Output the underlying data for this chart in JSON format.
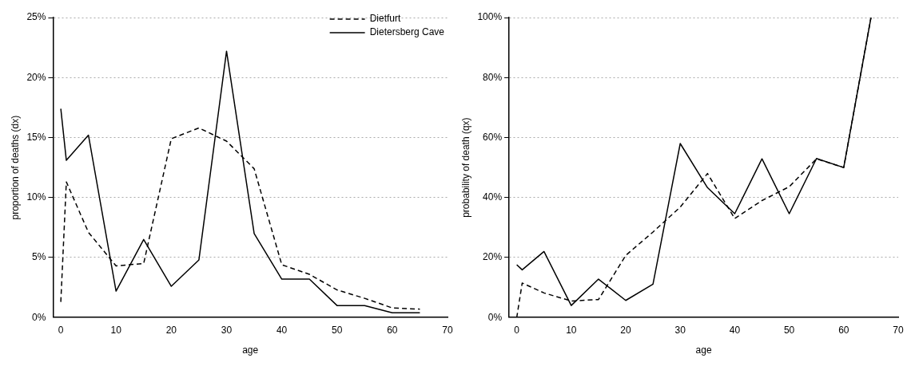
{
  "chart_data": [
    {
      "type": "line",
      "xlabel": "age",
      "ylabel": "proportion of deaths (dx)",
      "x": [
        0,
        1,
        5,
        10,
        15,
        20,
        25,
        30,
        35,
        40,
        45,
        50,
        55,
        60,
        65
      ],
      "xlim": [
        -1.4,
        70
      ],
      "xticks": [
        0,
        10,
        20,
        30,
        40,
        50,
        60,
        70
      ],
      "ylim": [
        0,
        25
      ],
      "yticks": [
        {
          "value": 0,
          "label": "0%"
        },
        {
          "value": 5,
          "label": "5%"
        },
        {
          "value": 10,
          "label": "10%"
        },
        {
          "value": 15,
          "label": "15%"
        },
        {
          "value": 20,
          "label": "20%"
        },
        {
          "value": 25,
          "label": "25%"
        }
      ],
      "grid": "y",
      "legend": "top right",
      "marker": "none",
      "series": [
        {
          "name": "Dietfurt",
          "color": "#000000",
          "line_style": "dashed",
          "values": [
            1.3,
            11.3,
            7.1,
            4.3,
            4.5,
            14.9,
            15.8,
            14.7,
            12.4,
            4.4,
            3.6,
            2.3,
            1.6,
            0.8,
            0.7
          ]
        },
        {
          "name": "Dietersberg Cave",
          "color": "#000000",
          "line_style": "solid",
          "values": [
            17.4,
            13.1,
            15.2,
            2.2,
            6.5,
            2.6,
            4.8,
            22.2,
            7.0,
            3.2,
            3.2,
            1.0,
            1.0,
            0.4,
            0.4
          ]
        }
      ]
    },
    {
      "type": "line",
      "xlabel": "age",
      "ylabel": "probability of death (qx)",
      "x": [
        0,
        1,
        5,
        10,
        15,
        20,
        25,
        30,
        35,
        40,
        45,
        50,
        55,
        60,
        65
      ],
      "xlim": [
        -1.4,
        70
      ],
      "xticks": [
        0,
        10,
        20,
        30,
        40,
        50,
        60,
        70
      ],
      "ylim": [
        0,
        100
      ],
      "yticks": [
        {
          "value": 0,
          "label": "0%"
        },
        {
          "value": 20,
          "label": "20%"
        },
        {
          "value": 40,
          "label": "40%"
        },
        {
          "value": 60,
          "label": "60%"
        },
        {
          "value": 80,
          "label": "80%"
        },
        {
          "value": 100,
          "label": "100%"
        }
      ],
      "grid": "y",
      "marker": "none",
      "series": [
        {
          "color": "#000000",
          "line_style": "dashed",
          "values": [
            0,
            11.5,
            8.2,
            5.5,
            6.0,
            20.7,
            28.5,
            36.8,
            48,
            33,
            39,
            43.6,
            52.9,
            50,
            100
          ]
        },
        {
          "color": "#000000",
          "line_style": "solid",
          "values": [
            17.6,
            15.9,
            22,
            4,
            12.8,
            5.7,
            11.1,
            58,
            43.3,
            34.6,
            52.9,
            34.6,
            53,
            50,
            100
          ]
        }
      ]
    }
  ]
}
